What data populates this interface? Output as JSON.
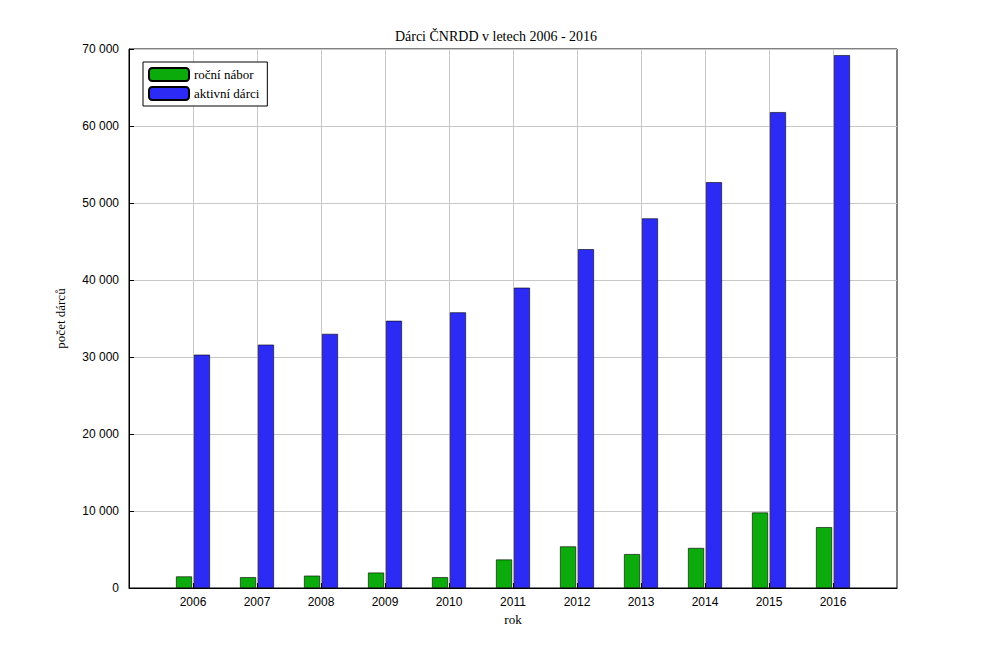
{
  "chart_data": {
    "type": "bar",
    "title": "Dárci ČNRDD v letech 2006 - 2016",
    "x_label": "rok",
    "y_label": "počet dárců",
    "x": [
      2006,
      2007,
      2008,
      2009,
      2010,
      2011,
      2012,
      2013,
      2014,
      2015,
      2016
    ],
    "xlim": [
      2005,
      2017
    ],
    "xticks": [
      2006,
      2007,
      2008,
      2009,
      2010,
      2011,
      2012,
      2013,
      2014,
      2015,
      2016
    ],
    "ylim": [
      0,
      70000
    ],
    "yticks": [
      0,
      {
        "value": 10000,
        "label": "10 000"
      },
      {
        "value": 20000,
        "label": "20 000"
      },
      {
        "value": 30000,
        "label": "30 000"
      },
      {
        "value": 40000,
        "label": "40 000"
      },
      {
        "value": 50000,
        "label": "50 000"
      },
      {
        "value": 60000,
        "label": "60 000"
      },
      {
        "value": 70000,
        "label": "70 000"
      }
    ],
    "series": [
      {
        "name": "roční nábor",
        "color": "#0aab0a",
        "values": [
          1500,
          1400,
          1600,
          2000,
          1400,
          3700,
          5400,
          4400,
          5200,
          9800,
          7900
        ]
      },
      {
        "name": "aktivní dárci",
        "color": "#2b2bf5",
        "values": [
          30300,
          31600,
          33000,
          34700,
          35800,
          39000,
          44000,
          48000,
          52700,
          61800,
          69200
        ]
      }
    ],
    "grid": true,
    "legend": "upper left"
  }
}
